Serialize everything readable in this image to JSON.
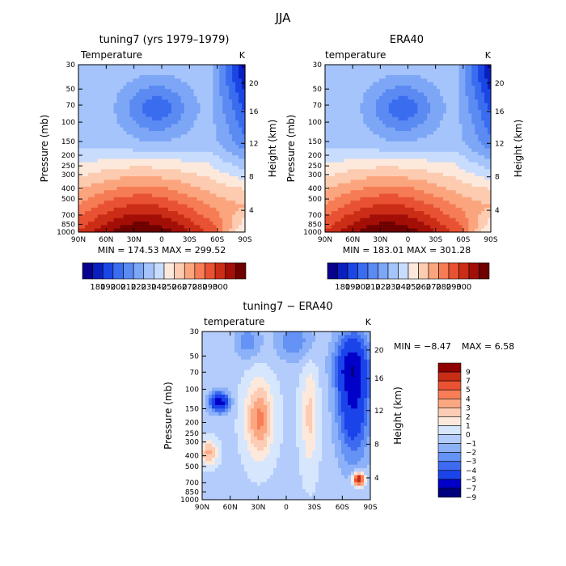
{
  "page": {
    "title": "JJA"
  },
  "colors": {
    "temp_scale": [
      "#08008c",
      "#0a1fbf",
      "#1b45e4",
      "#3a6cf0",
      "#5a8af2",
      "#7da6f6",
      "#a4c4fb",
      "#c8dcfd",
      "#fde9dc",
      "#fccbb0",
      "#fba57e",
      "#f67c56",
      "#e85232",
      "#cb2d17",
      "#a30f07",
      "#6e0000"
    ],
    "diff_scale": [
      "#00007d",
      "#0000c8",
      "#1a43ea",
      "#3d6af1",
      "#6492f5",
      "#8cb1f8",
      "#b4ccfb",
      "#d6e6fd",
      "#fde9dc",
      "#fcccb4",
      "#fba782",
      "#f77e57",
      "#ea5233",
      "#c72c14",
      "#8f0000"
    ]
  },
  "chart_data": [
    {
      "type": "heatmap",
      "name": "model",
      "title": "tuning7 (yrs 1979–1979)",
      "variable": "Temperature",
      "units": "K",
      "ylabel": "Pressure (mb)",
      "ylabel_right": "Height (km)",
      "x_ticks": [
        "90N",
        "60N",
        "30N",
        "0",
        "30S",
        "60S",
        "90S"
      ],
      "y_ticks": [
        "30",
        "50",
        "70",
        "100",
        "150",
        "200",
        "250",
        "300",
        "400",
        "500",
        "700",
        "850",
        "1000"
      ],
      "height_ticks": [
        "20",
        "16",
        "12",
        "8",
        "4"
      ],
      "stats": "MIN = 174.53   MAX = 299.52",
      "min": 174.53,
      "max": 299.52,
      "colorbar_labels": [
        "180",
        "190",
        "200",
        "210",
        "220",
        "230",
        "240",
        "250",
        "260",
        "270",
        "280",
        "290",
        "300"
      ]
    },
    {
      "type": "heatmap",
      "name": "obs",
      "title": "ERA40",
      "variable": "temperature",
      "units": "K",
      "ylabel": "Pressure (mb)",
      "ylabel_right": "Height (km)",
      "x_ticks": [
        "90N",
        "60N",
        "30N",
        "0",
        "30S",
        "60S",
        "90S"
      ],
      "y_ticks": [
        "30",
        "50",
        "70",
        "100",
        "150",
        "200",
        "250",
        "300",
        "400",
        "500",
        "700",
        "850",
        "1000"
      ],
      "height_ticks": [
        "20",
        "16",
        "12",
        "8",
        "4"
      ],
      "stats": "MIN = 183.01   MAX = 301.28",
      "min": 183.01,
      "max": 301.28,
      "colorbar_labels": [
        "180",
        "190",
        "200",
        "210",
        "220",
        "230",
        "240",
        "250",
        "260",
        "270",
        "280",
        "290",
        "300"
      ]
    },
    {
      "type": "heatmap",
      "name": "difference",
      "title": "tuning7 − ERA40",
      "variable": "temperature",
      "units": "K",
      "ylabel": "Pressure (mb)",
      "ylabel_right": "Height (km)",
      "x_ticks": [
        "90N",
        "60N",
        "30N",
        "0",
        "30S",
        "60S",
        "90S"
      ],
      "y_ticks": [
        "30",
        "50",
        "70",
        "100",
        "150",
        "200",
        "250",
        "300",
        "400",
        "500",
        "700",
        "850",
        "1000"
      ],
      "height_ticks": [
        "20",
        "16",
        "12",
        "8",
        "4"
      ],
      "stats_min": "MIN =   −8.47",
      "stats_max": "MAX =   6.58",
      "min": -8.47,
      "max": 6.58,
      "colorbar_labels": [
        "9",
        "7",
        "5",
        "4",
        "3",
        "2",
        "1",
        "0",
        "−1",
        "−2",
        "−3",
        "−4",
        "−5",
        "−7",
        "−9"
      ]
    }
  ]
}
